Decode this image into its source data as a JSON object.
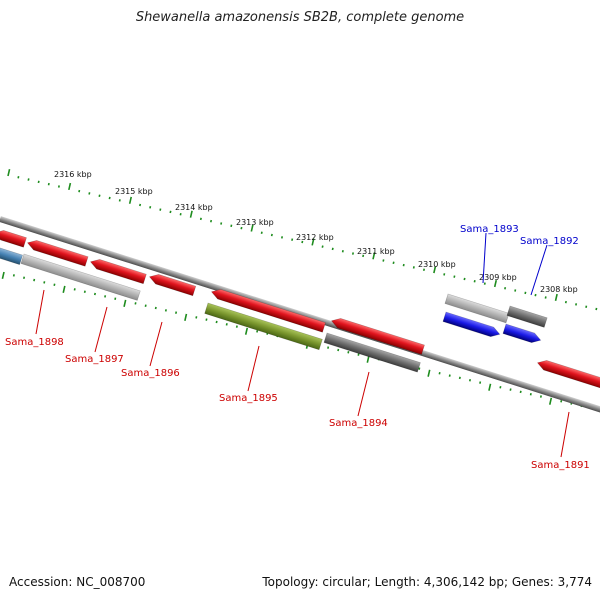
{
  "title": "Shewanella amazonensis SB2B, complete genome",
  "footer": {
    "accession": "Accession: NC_008700",
    "summary": "Topology: circular; Length: 4,306,142 bp; Genes: 3,774"
  },
  "colors": {
    "background": "#ffffff",
    "backbone": "#8a8a8a",
    "tick": "#1e8c1e",
    "label_forward": "#0000cc",
    "label_reverse": "#cc0000",
    "gene_red": "#e0141e",
    "gene_gray": "#777777",
    "gene_lightgray": "#b4b4b4",
    "gene_olive": "#7a962e",
    "gene_blue": "#1a1ae6",
    "gene_steelblue": "#4682b4"
  },
  "scale_labels": [
    "2316 kbp",
    "2315 kbp",
    "2314 kbp",
    "2313 kbp",
    "2312 kbp",
    "2311 kbp",
    "2310 kbp",
    "2309 kbp",
    "2308 kbp"
  ],
  "gene_labels": [
    {
      "text": "Sama_1893",
      "strand": "forward"
    },
    {
      "text": "Sama_1892",
      "strand": "forward"
    },
    {
      "text": "Sama_1898",
      "strand": "reverse"
    },
    {
      "text": "Sama_1897",
      "strand": "reverse"
    },
    {
      "text": "Sama_1896",
      "strand": "reverse"
    },
    {
      "text": "Sama_1895",
      "strand": "reverse"
    },
    {
      "text": "Sama_1894",
      "strand": "reverse"
    },
    {
      "text": "Sama_1891",
      "strand": "reverse"
    }
  ]
}
